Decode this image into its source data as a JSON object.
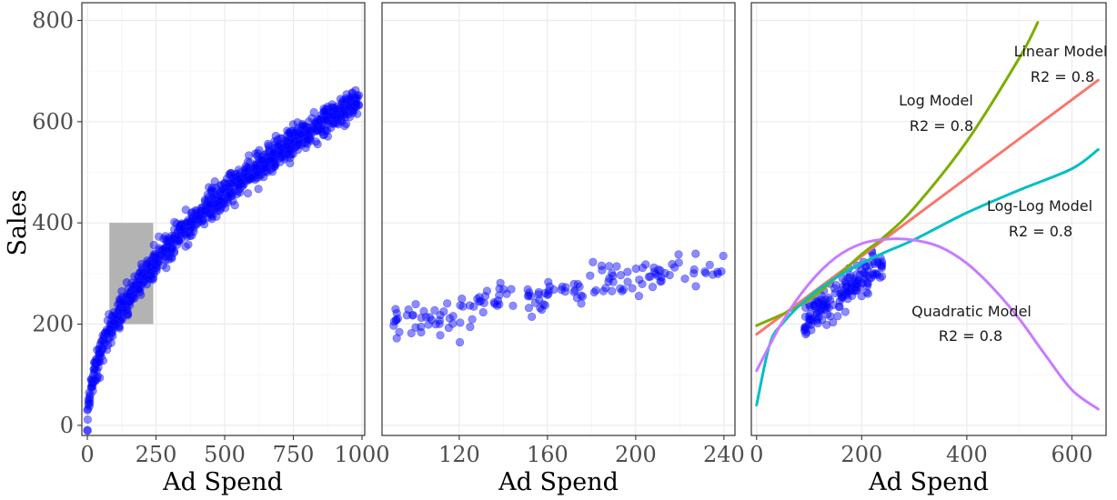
{
  "chart_data": [
    {
      "type": "scatter",
      "panel": "left",
      "xlabel": "Ad Spend",
      "ylabel": "Sales",
      "xlim": [
        -20,
        1010
      ],
      "ylim": [
        -20,
        835
      ],
      "x_ticks": [
        0,
        250,
        500,
        750,
        1000
      ],
      "x_tick_labels": [
        "0",
        "250",
        "500",
        "750",
        "1000"
      ],
      "y_ticks": [
        0,
        200,
        400,
        600,
        800
      ],
      "y_tick_labels": [
        "0",
        "200",
        "400",
        "600",
        "800"
      ],
      "grid": true,
      "point_color": "#0000ff",
      "trend": "sales ≈ 20.5 · spend^0.5 (approx.)",
      "n_points": 1000,
      "x_range": [
        0,
        990
      ],
      "highlight_box": {
        "x": [
          80,
          240
        ],
        "y": [
          200,
          400
        ],
        "color": "#a6a6a6"
      }
    },
    {
      "type": "scatter",
      "panel": "middle",
      "xlabel": "Ad Spend",
      "ylabel": "",
      "xlim": [
        85,
        245
      ],
      "ylim": [
        -20,
        835
      ],
      "x_ticks": [
        120,
        160,
        200,
        240
      ],
      "x_tick_labels": [
        "120",
        "160",
        "200",
        "240"
      ],
      "grid": true,
      "point_color": "#0000ff",
      "n_points": 160,
      "x_range": [
        90,
        240
      ]
    },
    {
      "type": "line",
      "panel": "right",
      "xlabel": "Ad Spend",
      "ylabel": "",
      "xlim": [
        -10,
        665
      ],
      "ylim": [
        -20,
        835
      ],
      "x_ticks": [
        0,
        200,
        400,
        600
      ],
      "x_tick_labels": [
        "0",
        "200",
        "400",
        "600"
      ],
      "grid": true,
      "scatter_x_range": [
        90,
        240
      ],
      "series": [
        {
          "name": "Linear Model",
          "color": "#f8766d",
          "x": [
            0,
            650
          ],
          "y": [
            180,
            682
          ]
        },
        {
          "name": "Log Model",
          "color": "#7cae00",
          "x": [
            0,
            100,
            200,
            240,
            300,
            400,
            500,
            535
          ],
          "y": [
            197,
            248,
            338,
            370,
            430,
            561,
            726,
            796
          ]
        },
        {
          "name": "Log-Log Model",
          "color": "#00bfc4",
          "x": [
            0,
            25,
            50,
            100,
            150,
            200,
            240,
            300,
            400,
            500,
            600,
            650
          ],
          "y": [
            40,
            160,
            202,
            254,
            291,
            320,
            340,
            367,
            420,
            465,
            507,
            545
          ]
        },
        {
          "name": "Quadratic Model",
          "color": "#c77cff",
          "x": [
            0,
            50,
            100,
            150,
            200,
            250,
            300,
            350,
            400,
            450,
            500,
            550,
            600,
            650
          ],
          "y": [
            108,
            206,
            280,
            331,
            359,
            368,
            366,
            352,
            320,
            271,
            210,
            138,
            70,
            32
          ]
        }
      ],
      "annotations": [
        {
          "line1": "Linear Model",
          "line2": "R2 = 0.8"
        },
        {
          "line1": "Log Model",
          "line2": "R2 = 0.8"
        },
        {
          "line1": "Log-Log Model",
          "line2": "R2 = 0.8"
        },
        {
          "line1": "Quadratic Model",
          "line2": "R2 = 0.8"
        }
      ]
    }
  ]
}
